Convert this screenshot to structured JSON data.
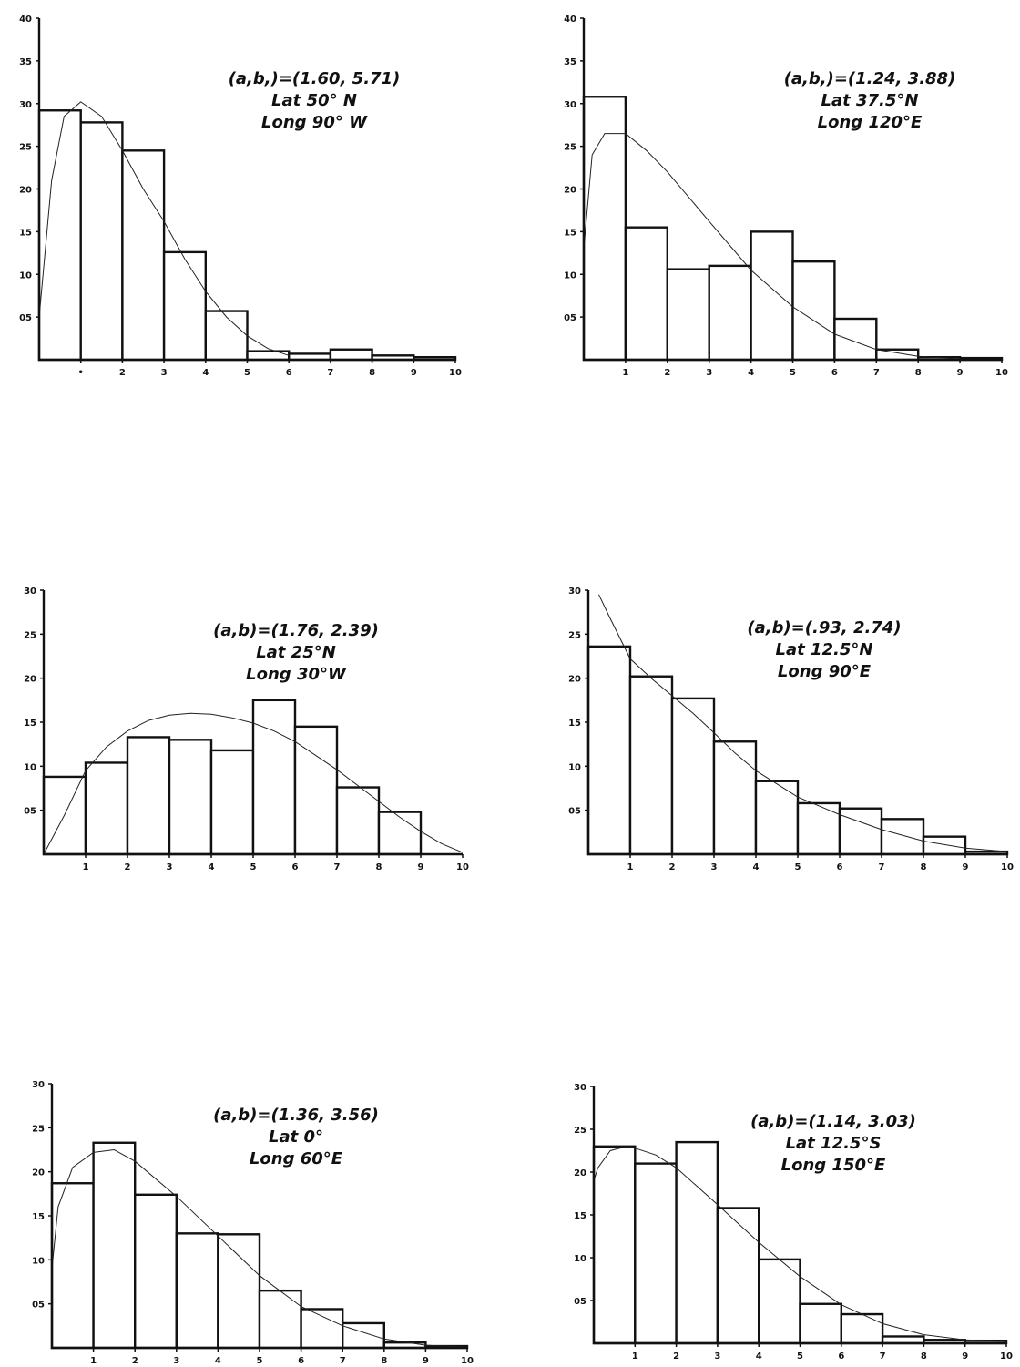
{
  "chart_data": [
    {
      "type": "bar",
      "annotation": [
        "(a,b,)=(1.60, 5.71)",
        "Lat 50° N",
        "Long 90° W"
      ],
      "x_tick_labels": [
        "•",
        "2",
        "3",
        "4",
        "5",
        "6",
        "7",
        "8",
        "9",
        "10"
      ],
      "y_tick_labels": [
        "05",
        "10",
        "15",
        "20",
        "25",
        "30",
        "35",
        "40"
      ],
      "xlim": [
        0,
        10
      ],
      "ylim": [
        0,
        4.0
      ],
      "bin_edges": [
        0,
        1,
        2,
        3,
        4,
        5,
        6,
        7,
        8,
        9,
        10
      ],
      "values": [
        2.92,
        2.78,
        2.45,
        1.26,
        0.57,
        0.1,
        0.07,
        0.12,
        0.05,
        0.03
      ],
      "fit_curve": {
        "x": [
          0,
          0.3,
          0.6,
          1.0,
          1.5,
          2.0,
          2.5,
          3.0,
          3.5,
          4.0,
          4.5,
          5.0,
          5.5,
          6.0
        ],
        "y": [
          0.5,
          2.1,
          2.85,
          3.02,
          2.85,
          2.45,
          2.0,
          1.62,
          1.18,
          0.8,
          0.5,
          0.28,
          0.13,
          0.05
        ]
      }
    },
    {
      "type": "bar",
      "annotation": [
        "(a,b,)=(1.24, 3.88)",
        "Lat 37.5°N",
        "Long 120°E"
      ],
      "x_tick_labels": [
        "1",
        "2",
        "3",
        "4",
        "5",
        "6",
        "7",
        "8",
        "9",
        "10"
      ],
      "y_tick_labels": [
        "05",
        "10",
        "15",
        "20",
        "25",
        "30",
        "35",
        "40"
      ],
      "xlim": [
        0,
        10
      ],
      "ylim": [
        0,
        4.0
      ],
      "bin_edges": [
        0,
        1,
        2,
        3,
        4,
        5,
        6,
        7,
        8,
        9,
        10
      ],
      "values": [
        3.08,
        1.55,
        1.06,
        1.1,
        1.5,
        1.15,
        0.48,
        0.12,
        0.03,
        0.02
      ],
      "fit_curve": {
        "x": [
          0,
          0.2,
          0.5,
          1.0,
          1.5,
          2.0,
          3.0,
          4.0,
          5.0,
          6.0,
          7.0,
          8.0,
          9.0
        ],
        "y": [
          1.3,
          2.4,
          2.65,
          2.65,
          2.45,
          2.2,
          1.62,
          1.05,
          0.62,
          0.3,
          0.12,
          0.04,
          0.01
        ]
      }
    },
    {
      "type": "bar",
      "annotation": [
        "(a,b)=(1.76, 2.39)",
        "Lat 25°N",
        "Long 30°W"
      ],
      "x_tick_labels": [
        "1",
        "2",
        "3",
        "4",
        "5",
        "6",
        "7",
        "8",
        "9",
        "10"
      ],
      "y_tick_labels": [
        "05",
        "10",
        "15",
        "20",
        "25",
        "30"
      ],
      "xlim": [
        0,
        10
      ],
      "ylim": [
        0,
        3.0
      ],
      "bin_edges": [
        0,
        1,
        2,
        3,
        4,
        5,
        6,
        7,
        8,
        9,
        10
      ],
      "values": [
        0.88,
        1.04,
        1.33,
        1.3,
        1.18,
        1.75,
        1.45,
        0.76,
        0.48,
        0
      ],
      "fit_curve": {
        "x": [
          0,
          0.5,
          1.0,
          1.5,
          2.0,
          2.5,
          3.0,
          3.5,
          4.0,
          4.5,
          5.0,
          5.5,
          6.0,
          6.5,
          7.0,
          7.5,
          8.0,
          8.5,
          9.0,
          9.5,
          10.0
        ],
        "y": [
          0,
          0.45,
          0.95,
          1.22,
          1.4,
          1.52,
          1.58,
          1.6,
          1.59,
          1.55,
          1.49,
          1.4,
          1.28,
          1.12,
          0.96,
          0.78,
          0.6,
          0.42,
          0.26,
          0.12,
          0.02
        ]
      }
    },
    {
      "type": "bar",
      "annotation": [
        "(a,b)=(.93, 2.74)",
        "Lat 12.5°N",
        "Long 90°E"
      ],
      "x_tick_labels": [
        "1",
        "2",
        "3",
        "4",
        "5",
        "6",
        "7",
        "8",
        "9",
        "10"
      ],
      "y_tick_labels": [
        "05",
        "10",
        "15",
        "20",
        "25",
        "30"
      ],
      "xlim": [
        0,
        10
      ],
      "ylim": [
        0,
        3.0
      ],
      "bin_edges": [
        0,
        1,
        2,
        3,
        4,
        5,
        6,
        7,
        8,
        9,
        10
      ],
      "values": [
        2.36,
        2.02,
        1.77,
        1.28,
        0.83,
        0.58,
        0.52,
        0.4,
        0.2,
        0.03
      ],
      "fit_curve": {
        "x": [
          0.25,
          0.5,
          1.0,
          1.5,
          2.0,
          2.5,
          3.0,
          3.5,
          4.0,
          4.5,
          5.0,
          5.5,
          6.0,
          7.0,
          8.0,
          9.0,
          10.0
        ],
        "y": [
          2.95,
          2.7,
          2.22,
          2.0,
          1.8,
          1.6,
          1.38,
          1.15,
          0.95,
          0.8,
          0.65,
          0.55,
          0.45,
          0.28,
          0.15,
          0.07,
          0.03
        ]
      }
    },
    {
      "type": "bar",
      "annotation": [
        "(a,b)=(1.36, 3.56)",
        "Lat 0°",
        "Long 60°E"
      ],
      "x_tick_labels": [
        "1",
        "2",
        "3",
        "4",
        "5",
        "6",
        "7",
        "8",
        "9",
        "10"
      ],
      "y_tick_labels": [
        "05",
        "10",
        "15",
        "20",
        "25",
        "30"
      ],
      "xlim": [
        0,
        10
      ],
      "ylim": [
        0,
        3.0
      ],
      "bin_edges": [
        0,
        1,
        2,
        3,
        4,
        5,
        6,
        7,
        8,
        9,
        10
      ],
      "values": [
        1.87,
        2.33,
        1.74,
        1.3,
        1.29,
        0.65,
        0.44,
        0.28,
        0.06,
        0.02
      ],
      "fit_curve": {
        "x": [
          0,
          0.15,
          0.5,
          1.0,
          1.5,
          2.0,
          3.0,
          4.0,
          5.0,
          6.0,
          7.0,
          8.0,
          9.0,
          10.0
        ],
        "y": [
          0.9,
          1.6,
          2.05,
          2.22,
          2.25,
          2.12,
          1.72,
          1.27,
          0.82,
          0.47,
          0.25,
          0.1,
          0.03,
          0.01
        ]
      }
    },
    {
      "type": "bar",
      "annotation": [
        "(a,b)=(1.14, 3.03)",
        "Lat 12.5°S",
        "Long 150°E"
      ],
      "x_tick_labels": [
        "1",
        "2",
        "3",
        "4",
        "5",
        "6",
        "7",
        "8",
        "9",
        "10"
      ],
      "y_tick_labels": [
        "05",
        "10",
        "15",
        "20",
        "25",
        "30"
      ],
      "xlim": [
        0,
        10
      ],
      "ylim": [
        0,
        3.0
      ],
      "bin_edges": [
        0,
        1,
        2,
        3,
        4,
        5,
        6,
        7,
        8,
        9,
        10
      ],
      "values": [
        2.3,
        2.1,
        2.35,
        1.58,
        0.98,
        0.46,
        0.34,
        0.08,
        0.04,
        0.03
      ],
      "fit_curve": {
        "x": [
          0,
          0.1,
          0.4,
          0.8,
          1.0,
          1.5,
          2.0,
          3.0,
          4.0,
          5.0,
          6.0,
          7.0,
          8.0,
          9.0,
          10.0
        ],
        "y": [
          1.9,
          2.05,
          2.25,
          2.3,
          2.28,
          2.2,
          2.05,
          1.62,
          1.18,
          0.78,
          0.45,
          0.23,
          0.1,
          0.04,
          0.02
        ]
      }
    }
  ]
}
